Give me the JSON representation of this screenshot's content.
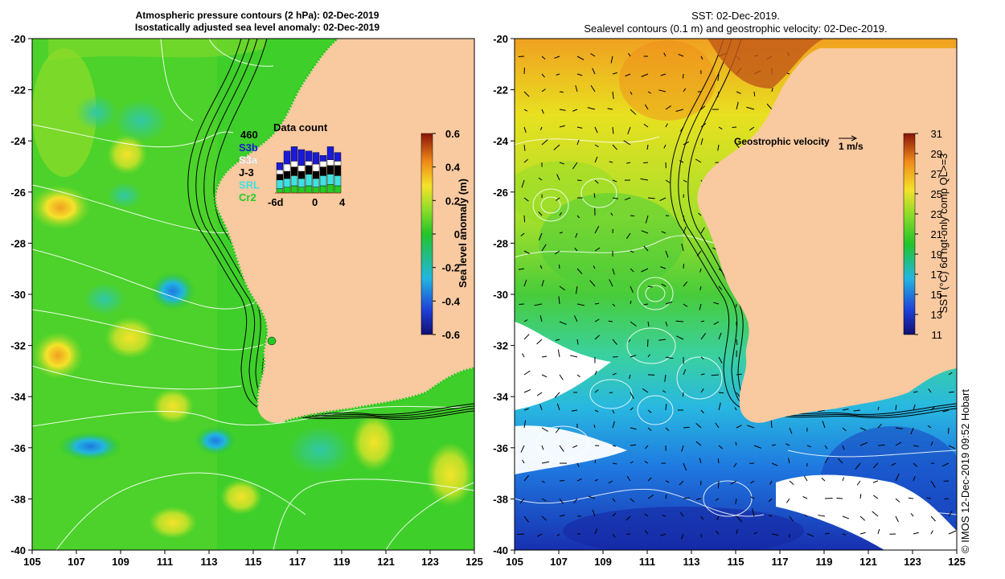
{
  "left_panel": {
    "title_line1": "Atmospheric pressure contours (2 hPa): 02-Dec-2019",
    "title_line2": "Isostatically adjusted sea level anomaly: 02-Dec-2019",
    "x_ticks": [
      "105",
      "107",
      "109",
      "111",
      "113",
      "115",
      "117",
      "119",
      "121",
      "123",
      "125"
    ],
    "y_ticks": [
      "-20",
      "-22",
      "-24",
      "-26",
      "-28",
      "-30",
      "-32",
      "-34",
      "-36",
      "-38",
      "-40"
    ],
    "colorbar": {
      "label": "Sea level anomaly (m)",
      "ticks": [
        "0.6",
        "0.4",
        "0.2",
        "0",
        "-0.2",
        "-0.4",
        "-0.6"
      ],
      "min": -0.6,
      "max": 0.6
    },
    "data_count": {
      "title": "Data count",
      "max_label": "460",
      "x_tick_labels": [
        "-6d",
        "0",
        "4"
      ],
      "legend": [
        {
          "label": "S3b",
          "color": "#1a1ad6"
        },
        {
          "label": "S3a",
          "color": "#ffffff"
        },
        {
          "label": "J-3",
          "color": "#000000"
        },
        {
          "label": "SRL",
          "color": "#40e0e0"
        },
        {
          "label": "Cr2",
          "color": "#22cc22"
        }
      ]
    }
  },
  "right_panel": {
    "title_line1": "SST: 02-Dec-2019.",
    "title_line2": "Sealevel contours (0.1 m) and geostrophic velocity: 02-Dec-2019.",
    "x_ticks": [
      "105",
      "107",
      "109",
      "111",
      "113",
      "115",
      "117",
      "119",
      "121",
      "123",
      "125"
    ],
    "y_ticks": [
      "-20",
      "-22",
      "-24",
      "-26",
      "-28",
      "-30",
      "-32",
      "-34",
      "-36",
      "-38",
      "-40"
    ],
    "colorbar": {
      "label": "SST (°C) 6d ngt-only comp QL>=3",
      "ticks": [
        "31",
        "29",
        "27",
        "25",
        "23",
        "21",
        "19",
        "17",
        "15",
        "13",
        "11"
      ],
      "min": 11,
      "max": 31
    },
    "velocity_legend": {
      "label": "Geostrophic velocity",
      "scale_label": "1 m/s"
    }
  },
  "copyright": "© IMOS 12-Dec-2019 09:52 Hobart",
  "colors": {
    "land": "#f9c9a0",
    "ocean_green": "#3fcf2a",
    "contour": "#ffffff",
    "isobath": "#000000"
  }
}
